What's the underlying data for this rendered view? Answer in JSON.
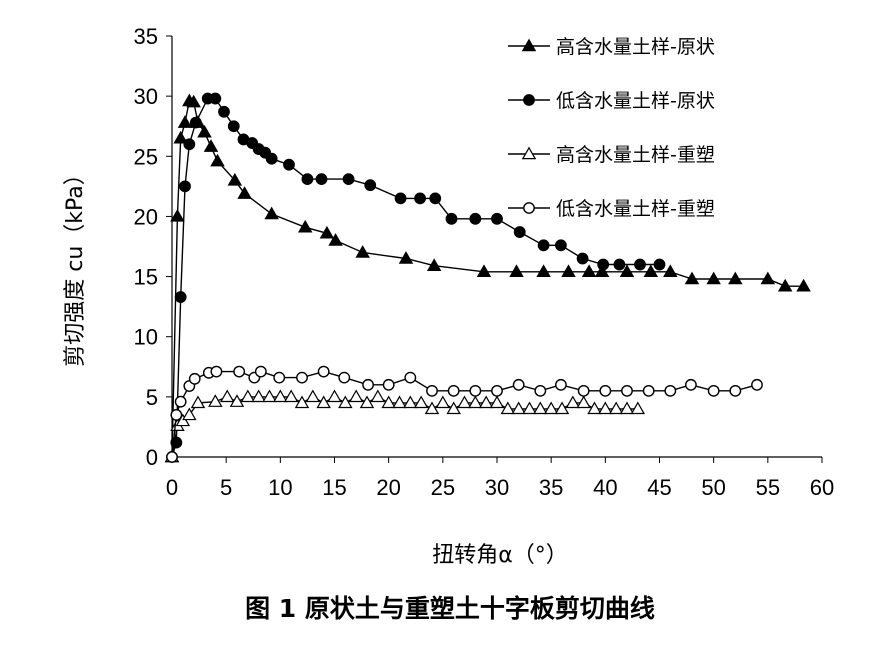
{
  "chart_data": {
    "type": "line",
    "xlabel": "扭转角α（°）",
    "ylabel": "剪切强度 cu（kPa）",
    "xlim": [
      0,
      60
    ],
    "ylim": [
      0,
      35
    ],
    "xticks": [
      0,
      5,
      10,
      15,
      20,
      25,
      30,
      35,
      40,
      45,
      50,
      55,
      60
    ],
    "yticks": [
      0,
      5,
      10,
      15,
      20,
      25,
      30,
      35
    ],
    "legend_position": "top-right",
    "series": [
      {
        "name": "高含水量土样-原状",
        "marker": "filled-triangle",
        "x": [
          0,
          0.5,
          0.8,
          1.2,
          1.6,
          2.0,
          2.4,
          3.0,
          3.6,
          4.2,
          5.8,
          6.7,
          9.2,
          12.3,
          14.3,
          15.1,
          17.6,
          21.6,
          24.2,
          28.8,
          31.8,
          34.3,
          36.6,
          38.5,
          39.7,
          42.0,
          44.2,
          46.0,
          48.0,
          50.0,
          52.0,
          55.0,
          56.6,
          58.3
        ],
        "y": [
          0,
          20,
          26.5,
          27.8,
          29.6,
          29.5,
          27.8,
          27.0,
          25.8,
          24.6,
          23.0,
          21.9,
          20.2,
          19.1,
          18.6,
          18.0,
          17.0,
          16.5,
          15.9,
          15.4,
          15.4,
          15.4,
          15.4,
          15.4,
          15.4,
          15.4,
          15.4,
          15.4,
          14.8,
          14.8,
          14.8,
          14.8,
          14.2,
          14.2
        ]
      },
      {
        "name": "低含水量土样-原状",
        "marker": "filled-circle",
        "x": [
          0,
          0.4,
          0.8,
          1.2,
          1.6,
          2.2,
          3.3,
          4.0,
          4.8,
          5.7,
          6.6,
          7.4,
          8.0,
          8.6,
          9.2,
          10.8,
          12.5,
          13.8,
          16.3,
          18.3,
          21.1,
          22.9,
          24.3,
          25.8,
          28.0,
          30.0,
          32.1,
          34.3,
          35.9,
          37.9,
          39.8,
          41.3,
          43.2,
          45.0
        ],
        "y": [
          0,
          1.2,
          13.3,
          22.5,
          26.0,
          27.8,
          29.8,
          29.8,
          28.7,
          27.5,
          26.4,
          26.1,
          25.6,
          25.3,
          24.8,
          24.3,
          23.1,
          23.1,
          23.1,
          22.6,
          21.5,
          21.5,
          21.5,
          19.8,
          19.8,
          19.8,
          18.7,
          17.6,
          17.6,
          16.5,
          16.0,
          16.0,
          16.0,
          16.0
        ]
      },
      {
        "name": "高含水量土样-重塑",
        "marker": "open-triangle",
        "x": [
          0,
          0.5,
          1.0,
          1.6,
          2.4,
          4.0,
          5.1,
          6.0,
          7.0,
          8.0,
          9.0,
          10.0,
          11.0,
          12.0,
          13.0,
          14.0,
          15.0,
          16.0,
          17.0,
          18.0,
          19.0,
          20.0,
          21.0,
          22.0,
          23.0,
          24.0,
          25.0,
          26.0,
          27.0,
          28.0,
          29.0,
          30.0,
          31.0,
          32.0,
          33.0,
          34.0,
          35.0,
          36.0,
          37.0,
          38.0,
          39.0,
          40.0,
          41.0,
          42.0,
          43.0
        ],
        "y": [
          0,
          2.6,
          3.0,
          3.5,
          4.5,
          4.6,
          5.0,
          4.6,
          5.0,
          5.0,
          5.0,
          5.0,
          5.0,
          4.5,
          5.0,
          4.5,
          5.0,
          4.5,
          5.0,
          4.5,
          5.0,
          4.5,
          4.5,
          4.5,
          4.5,
          4.0,
          4.5,
          4.0,
          4.5,
          4.5,
          4.5,
          4.5,
          4.0,
          4.0,
          4.0,
          4.0,
          4.0,
          4.0,
          4.5,
          4.5,
          4.0,
          4.0,
          4.0,
          4.0,
          4.0
        ]
      },
      {
        "name": "低含水量土样-重塑",
        "marker": "open-circle",
        "x": [
          0,
          0.4,
          0.8,
          1.6,
          2.1,
          3.4,
          4.1,
          6.2,
          7.6,
          8.2,
          9.9,
          12.0,
          14.0,
          15.9,
          18.1,
          20.0,
          22.0,
          24.0,
          26.0,
          28.0,
          30.0,
          32.0,
          34.0,
          35.9,
          38.0,
          40.0,
          42.0,
          44.0,
          46.0,
          47.9,
          50.0,
          52.0,
          54.0
        ],
        "y": [
          0,
          3.5,
          4.6,
          5.9,
          6.5,
          7.0,
          7.1,
          7.1,
          6.6,
          7.1,
          6.6,
          6.6,
          7.1,
          6.6,
          6.0,
          6.0,
          6.6,
          5.5,
          5.5,
          5.5,
          5.5,
          6.0,
          5.5,
          6.0,
          5.5,
          5.5,
          5.5,
          5.5,
          5.5,
          6.0,
          5.5,
          5.5,
          6.0
        ]
      }
    ]
  },
  "caption": "图 1  原状土与重塑土十字板剪切曲线"
}
